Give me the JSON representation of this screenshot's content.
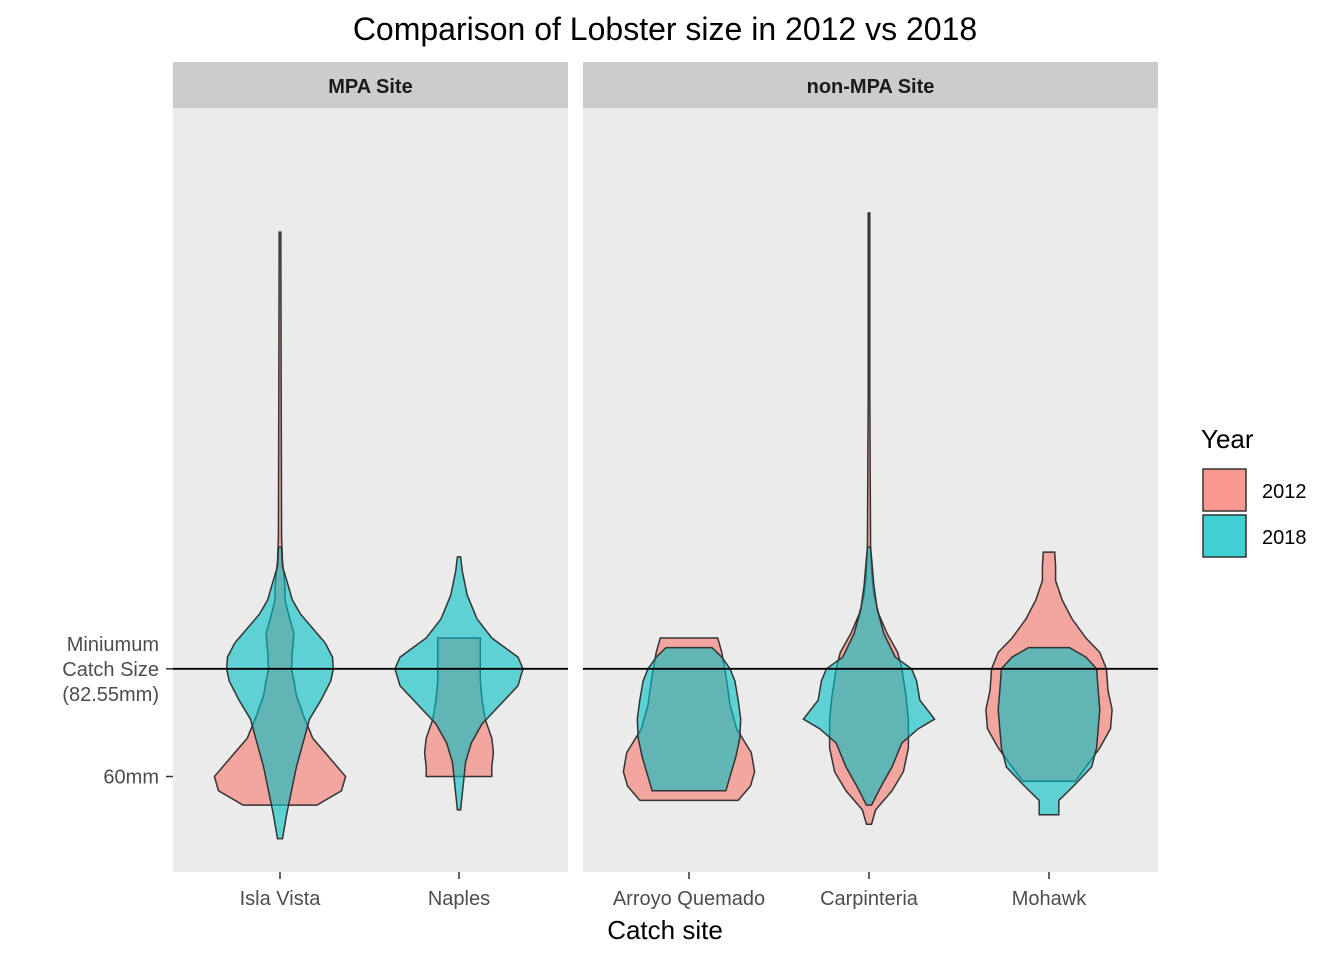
{
  "chart_data": {
    "type": "violin",
    "title": "Comparison of Lobster size in 2012 vs 2018",
    "xlabel": "Catch site",
    "ylabel": "",
    "ylim": [
      40,
      200
    ],
    "y_ticks": [
      {
        "value": 60,
        "label": "60mm"
      },
      {
        "value": 82.55,
        "label": "Miniumum\nCatch Size\n(82.55mm)"
      }
    ],
    "reference_line": {
      "value": 82.55
    },
    "grid": false,
    "legend": {
      "title": "Year",
      "position": "right",
      "entries": [
        {
          "label": "2012",
          "color": "#F8766D"
        },
        {
          "label": "2018",
          "color": "#00BFC4"
        }
      ]
    },
    "colors": {
      "panel_bg": "#EBEBEB",
      "strip_bg": "#CCCCCC",
      "outline": "#333333",
      "tick": "#4d4d4d"
    },
    "panels": [
      {
        "strip": "MPA Site",
        "sites": [
          {
            "name": "Isla Vista",
            "violins": {
              "2012": [
                [
                  54,
                  45
                ],
                [
                  57,
                  75
                ],
                [
                  60,
                  80
                ],
                [
                  64,
                  60
                ],
                [
                  68,
                  40
                ],
                [
                  73,
                  28
                ],
                [
                  77,
                  20
                ],
                [
                  80,
                  17
                ],
                [
                  82.55,
                  14
                ],
                [
                  86,
                  15
                ],
                [
                  90,
                  17
                ],
                [
                  93,
                  12
                ],
                [
                  97,
                  6
                ],
                [
                  100,
                  6
                ],
                [
                  105,
                  3
                ],
                [
                  110,
                  2
                ],
                [
                  140,
                  1.5
                ],
                [
                  174,
                  1
                ]
              ],
              "2018": [
                [
                  47,
                  3
                ],
                [
                  52,
                  8
                ],
                [
                  57,
                  14
                ],
                [
                  62,
                  20
                ],
                [
                  67,
                  28
                ],
                [
                  72,
                  36
                ],
                [
                  76,
                  50
                ],
                [
                  80,
                  62
                ],
                [
                  82.55,
                  65
                ],
                [
                  85,
                  64
                ],
                [
                  88,
                  55
                ],
                [
                  91,
                  40
                ],
                [
                  94,
                  25
                ],
                [
                  97,
                  15
                ],
                [
                  100,
                  10
                ],
                [
                  104,
                  3
                ],
                [
                  108,
                  2
                ]
              ]
            }
          },
          {
            "name": "Naples",
            "violins": {
              "2012": [
                [
                  60,
                  40
                ],
                [
                  62,
                  40
                ],
                [
                  65,
                  42
                ],
                [
                  68,
                  40
                ],
                [
                  72,
                  32
                ],
                [
                  76,
                  28
                ],
                [
                  80,
                  26
                ],
                [
                  82.55,
                  26
                ],
                [
                  86,
                  26
                ],
                [
                  89,
                  26
                ]
              ],
              "2018": [
                [
                  53,
                  2
                ],
                [
                  58,
                  5
                ],
                [
                  63,
                  8
                ],
                [
                  67,
                  15
                ],
                [
                  71,
                  28
                ],
                [
                  75,
                  50
                ],
                [
                  79,
                  72
                ],
                [
                  82.55,
                  78
                ],
                [
                  85,
                  72
                ],
                [
                  89,
                  40
                ],
                [
                  93,
                  22
                ],
                [
                  98,
                  10
                ],
                [
                  103,
                  4
                ],
                [
                  106,
                  2
                ]
              ]
            }
          }
        ]
      },
      {
        "strip": "non-MPA Site",
        "sites": [
          {
            "name": "Arroyo Quemado",
            "violins": {
              "2012": [
                [
                  55,
                  60
                ],
                [
                  58,
                  75
                ],
                [
                  61,
                  80
                ],
                [
                  65,
                  76
                ],
                [
                  70,
                  58
                ],
                [
                  75,
                  50
                ],
                [
                  80,
                  46
                ],
                [
                  83,
                  43
                ],
                [
                  86,
                  40
                ],
                [
                  89,
                  35
                ]
              ],
              "2018": [
                [
                  57,
                  45
                ],
                [
                  60,
                  50
                ],
                [
                  64,
                  57
                ],
                [
                  68,
                  62
                ],
                [
                  72,
                  63
                ],
                [
                  76,
                  60
                ],
                [
                  80,
                  56
                ],
                [
                  82.55,
                  50
                ],
                [
                  85,
                  40
                ],
                [
                  87,
                  28
                ]
              ]
            }
          },
          {
            "name": "Carpinteria",
            "violins": {
              "2012": [
                [
                  50,
                  3
                ],
                [
                  53,
                  8
                ],
                [
                  57,
                  28
                ],
                [
                  61,
                  42
                ],
                [
                  66,
                  48
                ],
                [
                  72,
                  48
                ],
                [
                  77,
                  45
                ],
                [
                  82.55,
                  40
                ],
                [
                  86,
                  35
                ],
                [
                  90,
                  22
                ],
                [
                  94,
                  12
                ],
                [
                  98,
                  6
                ],
                [
                  103,
                  3
                ],
                [
                  108,
                  2
                ],
                [
                  140,
                  1
                ],
                [
                  178,
                  1
                ]
              ],
              "2018": [
                [
                  54,
                  3
                ],
                [
                  58,
                  15
                ],
                [
                  62,
                  28
                ],
                [
                  67,
                  40
                ],
                [
                  70,
                  60
                ],
                [
                  72,
                  80
                ],
                [
                  76,
                  62
                ],
                [
                  80,
                  58
                ],
                [
                  82.55,
                  52
                ],
                [
                  85,
                  32
                ],
                [
                  90,
                  18
                ],
                [
                  95,
                  10
                ],
                [
                  100,
                  6
                ],
                [
                  104,
                  4
                ],
                [
                  108,
                  2
                ]
              ]
            }
          },
          {
            "name": "Mohawk",
            "violins": {
              "2012": [
                [
                  59,
                  32
                ],
                [
                  62,
                  45
                ],
                [
                  66,
                  62
                ],
                [
                  70,
                  75
                ],
                [
                  74,
                  77
                ],
                [
                  78,
                  72
                ],
                [
                  82.55,
                  70
                ],
                [
                  86,
                  62
                ],
                [
                  89,
                  45
                ],
                [
                  93,
                  28
                ],
                [
                  97,
                  16
                ],
                [
                  101,
                  8
                ],
                [
                  104,
                  8
                ],
                [
                  107,
                  7
                ]
              ],
              "2018": [
                [
                  52,
                  12
                ],
                [
                  55,
                  12
                ],
                [
                  58,
                  30
                ],
                [
                  62,
                  52
                ],
                [
                  66,
                  58
                ],
                [
                  70,
                  60
                ],
                [
                  74,
                  62
                ],
                [
                  78,
                  60
                ],
                [
                  82.55,
                  58
                ],
                [
                  85,
                  45
                ],
                [
                  87,
                  25
                ]
              ]
            }
          }
        ]
      }
    ]
  }
}
